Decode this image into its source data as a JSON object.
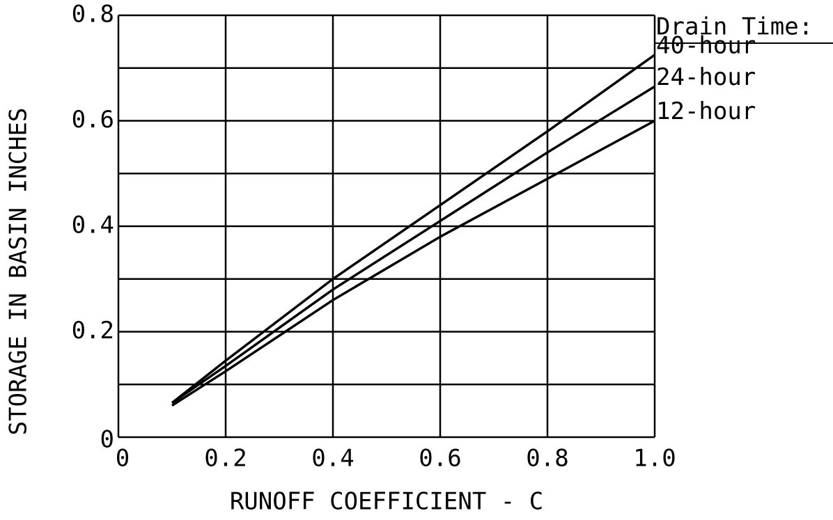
{
  "chart_data": {
    "type": "line",
    "xlabel": "RUNOFF COEFFICIENT - C",
    "ylabel": "STORAGE IN BASIN INCHES",
    "legend_title": "Drain Time:",
    "x": [
      0.1,
      0.2,
      0.4,
      0.6,
      0.8,
      1.0
    ],
    "series": [
      {
        "name": "40-hour",
        "color": "#000000",
        "values": [
          0.065,
          0.145,
          0.3,
          0.44,
          0.58,
          0.725
        ]
      },
      {
        "name": "24-hour",
        "color": "#000000",
        "values": [
          0.065,
          0.135,
          0.28,
          0.41,
          0.54,
          0.665
        ]
      },
      {
        "name": "12-hour",
        "color": "#000000",
        "values": [
          0.06,
          0.125,
          0.26,
          0.38,
          0.49,
          0.6
        ]
      }
    ],
    "xlim": [
      0,
      1
    ],
    "ylim": [
      0,
      0.8
    ],
    "xticks": [
      0,
      0.2,
      0.4,
      0.6,
      0.8,
      {
        "value": 1,
        "label": "1.0"
      }
    ],
    "yticks": [
      0,
      0.2,
      0.4,
      0.6,
      0.8
    ],
    "yticks_minor": [
      0.1,
      0.3,
      0.5,
      0.7
    ],
    "grid": true,
    "legend": "right"
  }
}
